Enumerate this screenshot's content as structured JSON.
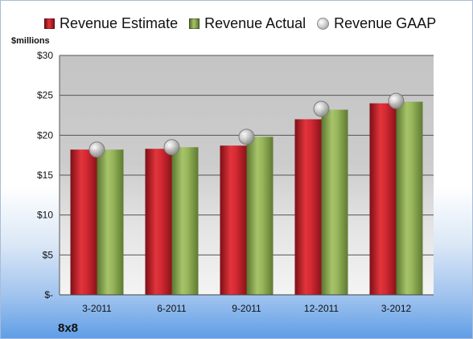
{
  "chart_data": {
    "type": "bar",
    "title": "",
    "unit_label": "$millions",
    "company_label": "8x8",
    "categories": [
      "3-2011",
      "6-2011",
      "9-2011",
      "12-2011",
      "3-2012"
    ],
    "y_ticks": [
      0,
      5,
      10,
      15,
      20,
      25,
      30
    ],
    "y_tick_labels": [
      "$-",
      "$5",
      "$10",
      "$15",
      "$20",
      "$25",
      "$30"
    ],
    "ylim": [
      0,
      30
    ],
    "grid": true,
    "legend_position": "top",
    "series": [
      {
        "name": "Revenue Estimate",
        "kind": "bar",
        "color": "#c0202a",
        "values": [
          18.2,
          18.3,
          18.7,
          22.0,
          24.0
        ]
      },
      {
        "name": "Revenue Actual",
        "kind": "bar",
        "color": "#8aa84a",
        "values": [
          18.2,
          18.5,
          19.8,
          23.2,
          24.2
        ]
      },
      {
        "name": "Revenue GAAP",
        "kind": "marker",
        "color": "#b4b4b4",
        "values": [
          18.2,
          18.5,
          19.8,
          23.3,
          24.3
        ]
      }
    ]
  }
}
